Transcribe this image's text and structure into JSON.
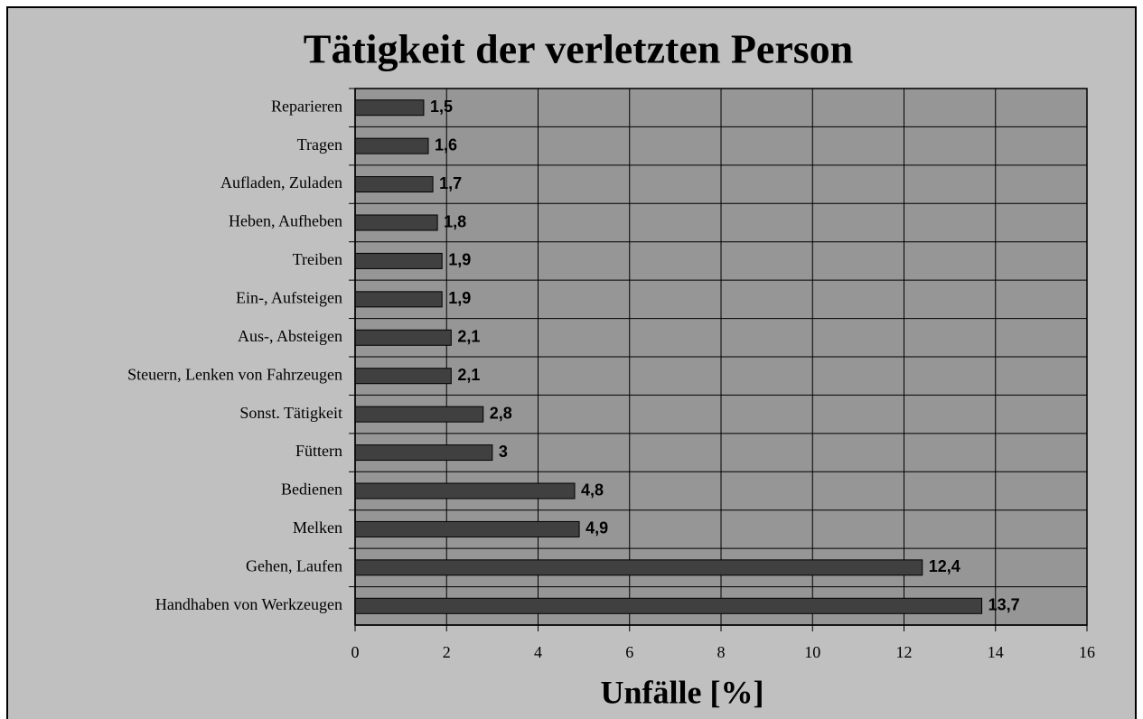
{
  "chart_data": {
    "type": "barh",
    "title": "Tätigkeit der verletzten Person",
    "xlabel": "Unfälle [%]",
    "categories": [
      "Reparieren",
      "Tragen",
      "Aufladen, Zuladen",
      "Heben, Aufheben",
      "Treiben",
      "Ein-, Aufsteigen",
      "Aus-, Absteigen",
      "Steuern, Lenken von Fahrzeugen",
      "Sonst. Tätigkeit",
      "Füttern",
      "Bedienen",
      "Melken",
      "Gehen, Laufen",
      "Handhaben von Werkzeugen"
    ],
    "values": [
      1.5,
      1.6,
      1.7,
      1.8,
      1.9,
      1.9,
      2.1,
      2.1,
      2.8,
      3,
      4.8,
      4.9,
      12.4,
      13.7
    ],
    "value_labels": [
      "1,5",
      "1,6",
      "1,7",
      "1,8",
      "1,9",
      "1,9",
      "2,1",
      "2,1",
      "2,8",
      "3",
      "4,8",
      "4,9",
      "12,4",
      "13,7"
    ],
    "color": "#404040",
    "xlim": [
      0,
      16
    ],
    "xticks": [
      0,
      2,
      4,
      6,
      8,
      10,
      12,
      14,
      16
    ],
    "grid": true
  }
}
